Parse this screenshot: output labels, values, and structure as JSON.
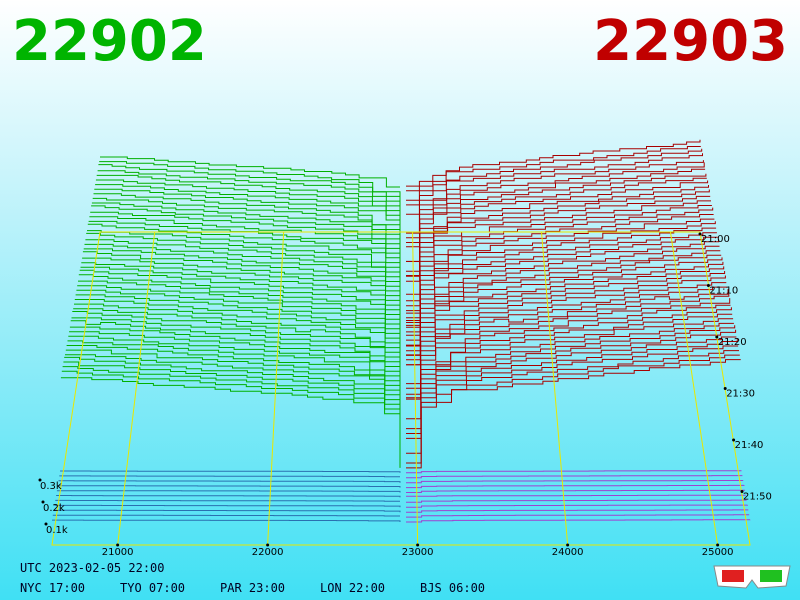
{
  "header": {
    "bid": 22902,
    "ask": 22903
  },
  "price_axis": {
    "ticks": [
      21000,
      22000,
      23000,
      24000,
      25000
    ]
  },
  "time_axis": {
    "labels": [
      "21:00",
      "21:10",
      "21:20",
      "21:30",
      "21:40",
      "21:50"
    ]
  },
  "volume_axis": {
    "labels": [
      "0.3k",
      "0.2k",
      "0.1k"
    ]
  },
  "footer": {
    "utc": "UTC 2023-02-05 22:00",
    "cities": [
      "NYC 17:00",
      "TYO 07:00",
      "PAR 23:00",
      "LON 22:00",
      "BJS 06:00"
    ]
  }
}
